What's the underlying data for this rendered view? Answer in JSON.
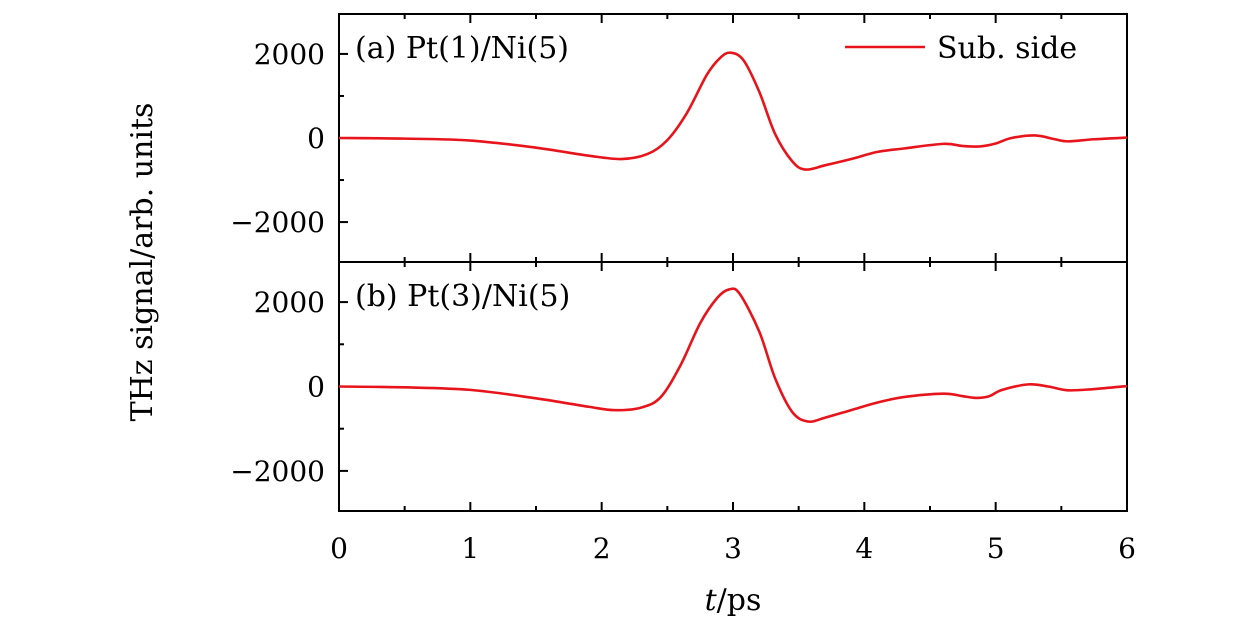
{
  "chart_data": [
    {
      "type": "line",
      "panel_label": "(a) Pt(1)/Ni(5)",
      "legend": {
        "entries": [
          "Sub. side"
        ],
        "placement": "top-right"
      },
      "color": "#e8141b",
      "xlim": [
        0,
        6
      ],
      "ylim": [
        -2950,
        2950
      ],
      "yticks": [
        -2000,
        0,
        2000
      ],
      "ytick_labels": [
        "−2000",
        "0",
        "2000"
      ],
      "series": [
        {
          "name": "Sub. side",
          "x": [
            0,
            0.5,
            1,
            1.5,
            1.9,
            2.15,
            2.35,
            2.5,
            2.65,
            2.8,
            2.9,
            2.98,
            3.08,
            3.2,
            3.32,
            3.45,
            3.55,
            3.7,
            3.9,
            4.1,
            4.3,
            4.6,
            4.75,
            4.88,
            5.0,
            5.12,
            5.3,
            5.45,
            5.55,
            5.75,
            6
          ],
          "y": [
            0,
            -15,
            -60,
            -230,
            -420,
            -500,
            -380,
            -50,
            600,
            1500,
            1900,
            2030,
            1850,
            1100,
            100,
            -550,
            -750,
            -650,
            -500,
            -330,
            -250,
            -140,
            -190,
            -200,
            -130,
            0,
            60,
            -30,
            -80,
            -30,
            10
          ]
        }
      ]
    },
    {
      "type": "line",
      "panel_label": "(b) Pt(3)/Ni(5)",
      "color": "#e8141b",
      "xlim": [
        0,
        6
      ],
      "ylim": [
        -2950,
        2950
      ],
      "yticks": [
        -2000,
        0,
        2000
      ],
      "ytick_labels": [
        "−2000",
        "0",
        "2000"
      ],
      "series": [
        {
          "name": "Sub. side",
          "x": [
            0,
            0.5,
            1,
            1.5,
            1.9,
            2.1,
            2.3,
            2.45,
            2.6,
            2.75,
            2.88,
            2.97,
            3.05,
            3.2,
            3.32,
            3.45,
            3.57,
            3.7,
            3.9,
            4.1,
            4.3,
            4.6,
            4.75,
            4.85,
            4.95,
            5.05,
            5.25,
            5.4,
            5.55,
            5.75,
            6
          ],
          "y": [
            0,
            -20,
            -80,
            -280,
            -480,
            -560,
            -500,
            -250,
            500,
            1500,
            2100,
            2300,
            2200,
            1300,
            200,
            -600,
            -830,
            -740,
            -560,
            -380,
            -250,
            -170,
            -230,
            -270,
            -230,
            -80,
            50,
            0,
            -90,
            -60,
            10
          ]
        }
      ]
    }
  ],
  "x_axis": {
    "label_italic": "t",
    "label_rest": "/ps",
    "ticks": [
      0,
      1,
      2,
      3,
      4,
      5,
      6
    ],
    "tick_labels": [
      "0",
      "1",
      "2",
      "3",
      "4",
      "5",
      "6"
    ]
  },
  "y_axis": {
    "label": "THz signal/arb. units"
  }
}
